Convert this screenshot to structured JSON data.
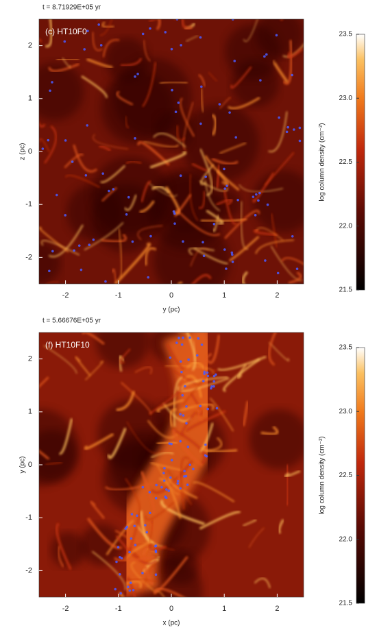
{
  "panels": [
    {
      "time": "t = 8.71929E+05 yr",
      "label": "(c)  HT10F0",
      "xlabel": "y (pc)",
      "ylabel": "z (pc)",
      "xlim": [
        -2.5,
        2.5
      ],
      "ylim": [
        -2.5,
        2.5
      ],
      "xticks": [
        -2,
        -1,
        0,
        1,
        2
      ],
      "yticks": [
        -2,
        -1,
        0,
        1,
        2
      ],
      "colorbar": {
        "label": "log column density (cm⁻²)",
        "lim": [
          21.5,
          23.5
        ],
        "ticks": [
          21.5,
          {
            "value": 22,
            "label": "22.0"
          },
          22.5,
          {
            "value": 23,
            "label": "23.0"
          },
          23.5
        ]
      }
    },
    {
      "time": "t = 5.66676E+05 yr",
      "label": "(f)  HT10F10",
      "xlabel": "x (pc)",
      "ylabel": "y (pc)",
      "xlim": [
        -2.5,
        2.5
      ],
      "ylim": [
        -2.5,
        2.5
      ],
      "xticks": [
        -2,
        -1,
        0,
        1,
        2
      ],
      "yticks": [
        -2,
        -1,
        0,
        1,
        2
      ],
      "colorbar": {
        "label": "log column density (cm⁻²)",
        "lim": [
          21.5,
          23.5
        ],
        "ticks": [
          21.5,
          {
            "value": 22,
            "label": "22.0"
          },
          22.5,
          {
            "value": 23,
            "label": "23.0"
          },
          23.5
        ]
      }
    }
  ]
}
